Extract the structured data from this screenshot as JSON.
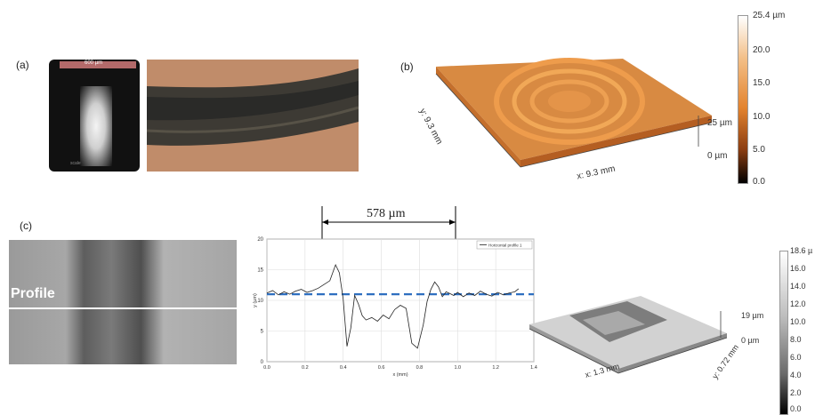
{
  "panel_a": {
    "label": "(a)",
    "scale_bar_text": "600 µm",
    "micrograph_tag": "scale"
  },
  "panel_b": {
    "label": "(b)",
    "x_axis": "x: 9.3 mm",
    "y_axis": "y: 9.3 mm",
    "z_scale": "25 µm",
    "zero": "0 µm",
    "colorbar_ticks": [
      "25.4 µm",
      "20.0",
      "15.0",
      "10.0",
      "5.0",
      "0.0"
    ]
  },
  "panel_c": {
    "label": "(c)",
    "profile_label": "Profile",
    "dimension": "578 µm",
    "surface_x_axis": "x: 1.3 mm",
    "surface_y_axis": "y: 0.72 mm",
    "surface_z_scale": "19 µm",
    "surface_zero": "0 µm",
    "colorbar_ticks": [
      "18.6 µ",
      "16.0",
      "14.0",
      "12.0",
      "10.0",
      "8.0",
      "6.0",
      "4.0",
      "2.0",
      "0.0"
    ]
  },
  "chart_data": {
    "type": "line",
    "legend": [
      "Horizontal profile 1"
    ],
    "xlabel": "x (mm)",
    "ylabel": "y (µm)",
    "xlim": [
      0,
      1.4
    ],
    "ylim": [
      0,
      20
    ],
    "x_ticks": [
      "0.0",
      "0.2",
      "0.4",
      "0.6",
      "0.8",
      "1.0",
      "1.2",
      "1.4"
    ],
    "y_ticks": [
      "0",
      "5",
      "10",
      "15",
      "20"
    ],
    "grid": true,
    "reference_line_y": 11,
    "series": [
      {
        "name": "Horizontal profile 1",
        "x": [
          0.0,
          0.03,
          0.06,
          0.09,
          0.12,
          0.15,
          0.18,
          0.21,
          0.24,
          0.27,
          0.3,
          0.33,
          0.36,
          0.38,
          0.4,
          0.42,
          0.44,
          0.46,
          0.48,
          0.5,
          0.52,
          0.55,
          0.58,
          0.61,
          0.64,
          0.67,
          0.7,
          0.73,
          0.76,
          0.79,
          0.82,
          0.84,
          0.86,
          0.88,
          0.9,
          0.92,
          0.94,
          0.96,
          0.98,
          1.0,
          1.03,
          1.06,
          1.09,
          1.12,
          1.15,
          1.18,
          1.21,
          1.24,
          1.27,
          1.3,
          1.32
        ],
        "y": [
          11.2,
          11.6,
          10.9,
          11.4,
          11.0,
          11.5,
          11.8,
          11.3,
          11.6,
          12.0,
          12.6,
          13.2,
          15.8,
          14.5,
          10.2,
          2.5,
          5.5,
          10.8,
          9.4,
          7.5,
          6.8,
          7.2,
          6.6,
          7.6,
          7.0,
          8.5,
          9.2,
          8.7,
          3.0,
          2.2,
          6.0,
          9.8,
          11.8,
          13.0,
          12.2,
          10.6,
          11.4,
          11.1,
          10.8,
          11.3,
          10.6,
          11.2,
          10.8,
          11.5,
          11.0,
          10.7,
          11.3,
          10.9,
          11.2,
          11.4,
          11.9
        ]
      }
    ]
  }
}
